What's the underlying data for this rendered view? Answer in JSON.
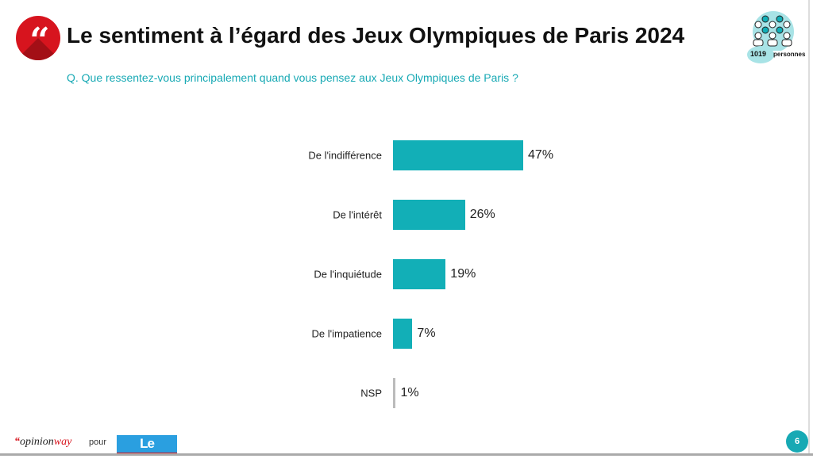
{
  "header": {
    "title": "Le sentiment à l’égard des Jeux Olympiques de Paris 2024",
    "question": "Q. Que ressentez-vous principalement quand vous pensez aux Jeux Olympiques de Paris ?",
    "quote_icon": "“",
    "sample_count": "1019",
    "sample_label": "personnes"
  },
  "chart_data": {
    "type": "bar",
    "orientation": "horizontal",
    "categories": [
      "De l'indifférence",
      "De l'intérêt",
      "De l'inquiétude",
      "De l'impatience",
      "NSP"
    ],
    "values": [
      47,
      26,
      19,
      7,
      1
    ],
    "labels": [
      "47%",
      "26%",
      "19%",
      "7%",
      "1%"
    ],
    "colors": [
      "#12afb7",
      "#12afb7",
      "#12afb7",
      "#12afb7",
      "#bbbbbb"
    ],
    "unit": "%"
  },
  "footer": {
    "brand_quote": "“",
    "brand_opinion": "opinion",
    "brand_way": "way",
    "pour": "pour",
    "partner": "Le Parisien",
    "page": "6"
  }
}
